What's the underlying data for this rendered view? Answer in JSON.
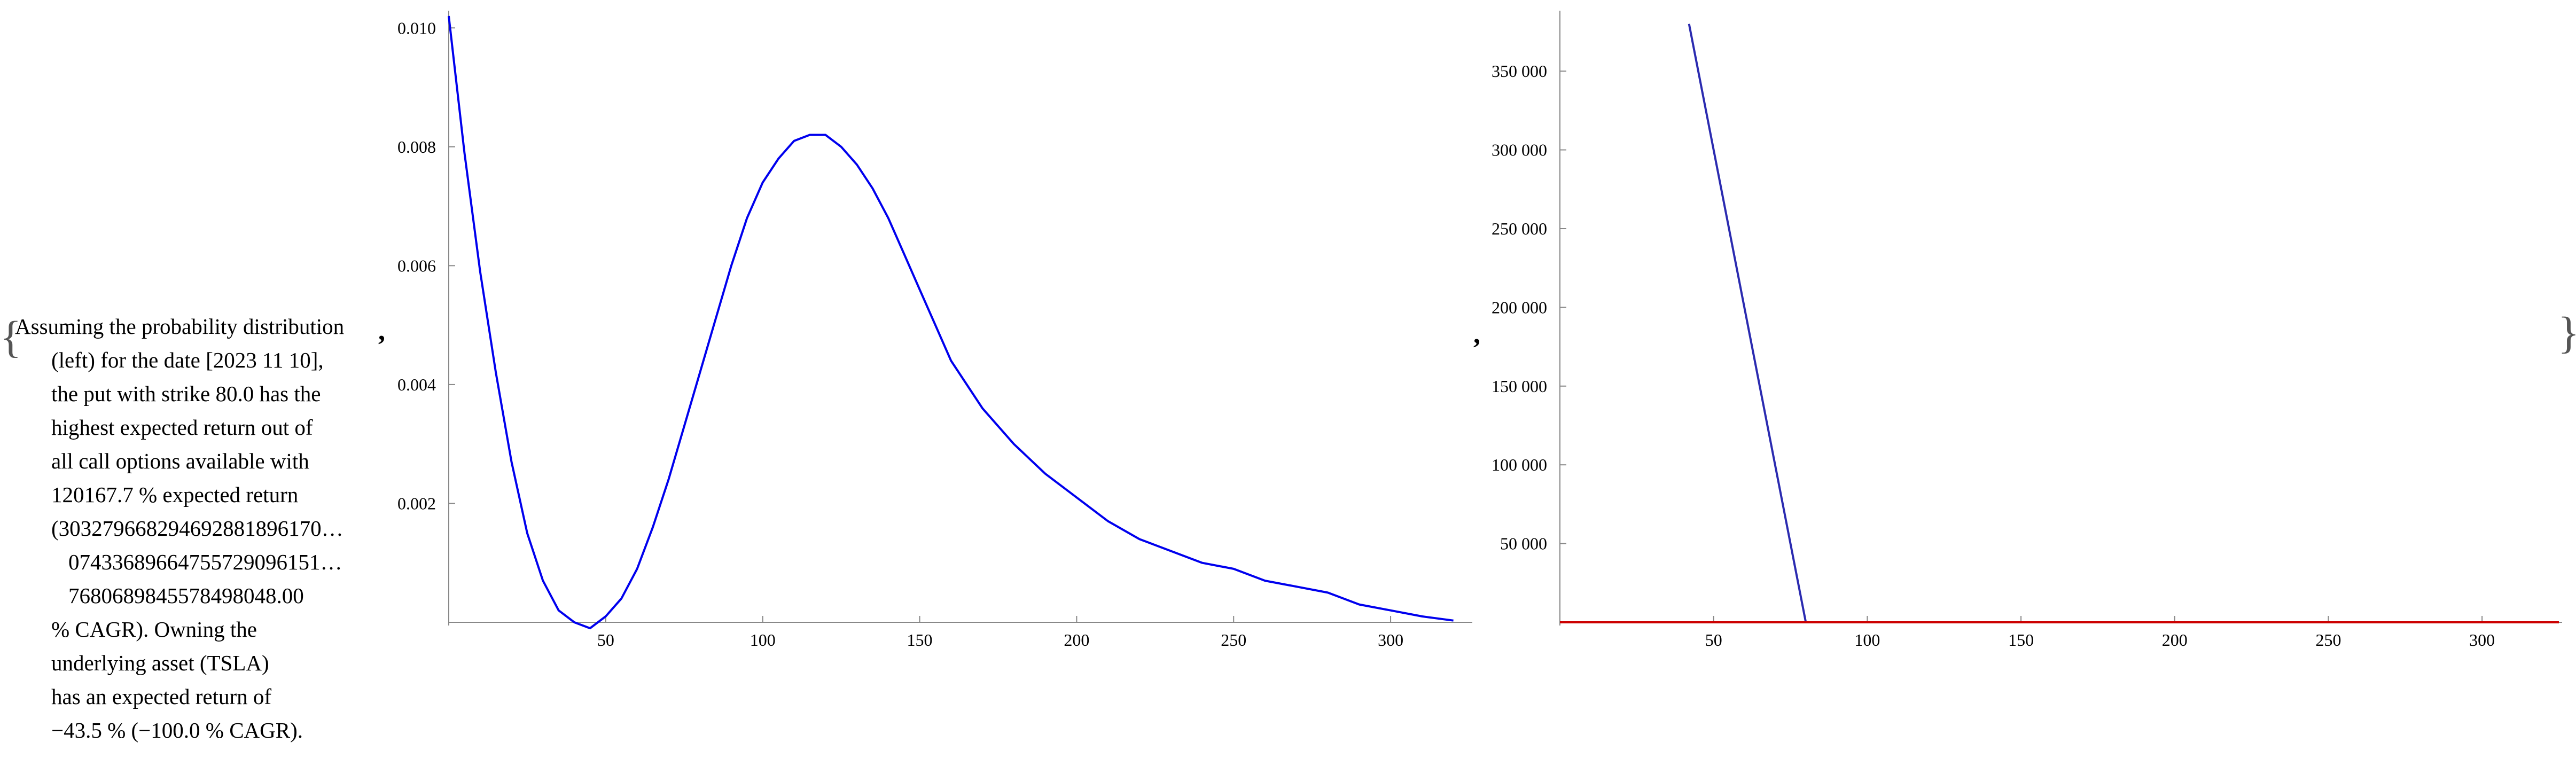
{
  "open_brace": "{",
  "close_brace": "}",
  "separator_1": ",",
  "separator_2": ",",
  "description_lines": [
    "Assuming the probability distribution",
    "(left) for the date [2023 11 10],",
    "the put with strike 80.0 has the",
    "highest expected return out of",
    "all call options available with",
    "120167.7 % expected return",
    "(303279668294692881896170…",
    "07433689664755729096151…",
    "7680689845578498048.00",
    "% CAGR). Owning the",
    "underlying asset (TSLA)",
    "has an expected return of",
    "−43.5 % (−100.0 % CAGR)."
  ],
  "chart_data": [
    {
      "type": "line",
      "title": "",
      "xlabel": "",
      "ylabel": "",
      "xlim": [
        0,
        325
      ],
      "ylim": [
        0,
        0.0102
      ],
      "x_ticks": [
        50,
        100,
        150,
        200,
        250,
        300
      ],
      "x_tick_labels": [
        "50",
        "100",
        "150",
        "200",
        "250",
        "300"
      ],
      "y_ticks": [
        0.002,
        0.004,
        0.006,
        0.008,
        0.01
      ],
      "y_tick_labels": [
        "0.002",
        "0.004",
        "0.006",
        "0.008",
        "0.010"
      ],
      "series": [
        {
          "color": "#0000ee",
          "x": [
            0,
            5,
            10,
            15,
            20,
            25,
            30,
            35,
            40,
            45,
            50,
            55,
            60,
            65,
            70,
            75,
            80,
            85,
            90,
            95,
            100,
            105,
            110,
            115,
            120,
            125,
            130,
            135,
            140,
            145,
            150,
            155,
            160,
            170,
            180,
            190,
            200,
            210,
            220,
            230,
            240,
            250,
            260,
            270,
            280,
            290,
            300,
            310,
            320
          ],
          "y": [
            0.0102,
            0.0079,
            0.0059,
            0.0042,
            0.0027,
            0.0015,
            0.0007,
            0.0002,
            0.0,
            -0.0001,
            0.0001,
            0.0004,
            0.0009,
            0.0016,
            0.0024,
            0.0033,
            0.0042,
            0.0051,
            0.006,
            0.0068,
            0.0074,
            0.0078,
            0.0081,
            0.0082,
            0.0082,
            0.008,
            0.0077,
            0.0073,
            0.0068,
            0.0062,
            0.0056,
            0.005,
            0.0044,
            0.0036,
            0.003,
            0.0025,
            0.0021,
            0.0017,
            0.0014,
            0.0012,
            0.001,
            0.0009,
            0.0007,
            0.0006,
            0.0005,
            0.0003,
            0.0002,
            0.0001,
            3e-05
          ]
        }
      ]
    },
    {
      "type": "line",
      "title": "",
      "xlabel": "",
      "ylabel": "",
      "xlim": [
        0,
        325
      ],
      "ylim": [
        0,
        385000
      ],
      "x_ticks": [
        50,
        100,
        150,
        200,
        250,
        300
      ],
      "x_tick_labels": [
        "50",
        "100",
        "150",
        "200",
        "250",
        "300"
      ],
      "y_ticks": [
        50000,
        100000,
        150000,
        200000,
        250000,
        300000,
        350000
      ],
      "y_tick_labels": [
        "50 000",
        "100 000",
        "150 000",
        "200 000",
        "250 000",
        "300 000",
        "350 000"
      ],
      "series": [
        {
          "color": "#2b2bb0",
          "x": [
            42,
            80,
            325
          ],
          "y": [
            380000,
            0,
            0
          ]
        },
        {
          "color": "#cc0000",
          "x": [
            0,
            325
          ],
          "y": [
            0,
            0
          ]
        }
      ]
    }
  ]
}
